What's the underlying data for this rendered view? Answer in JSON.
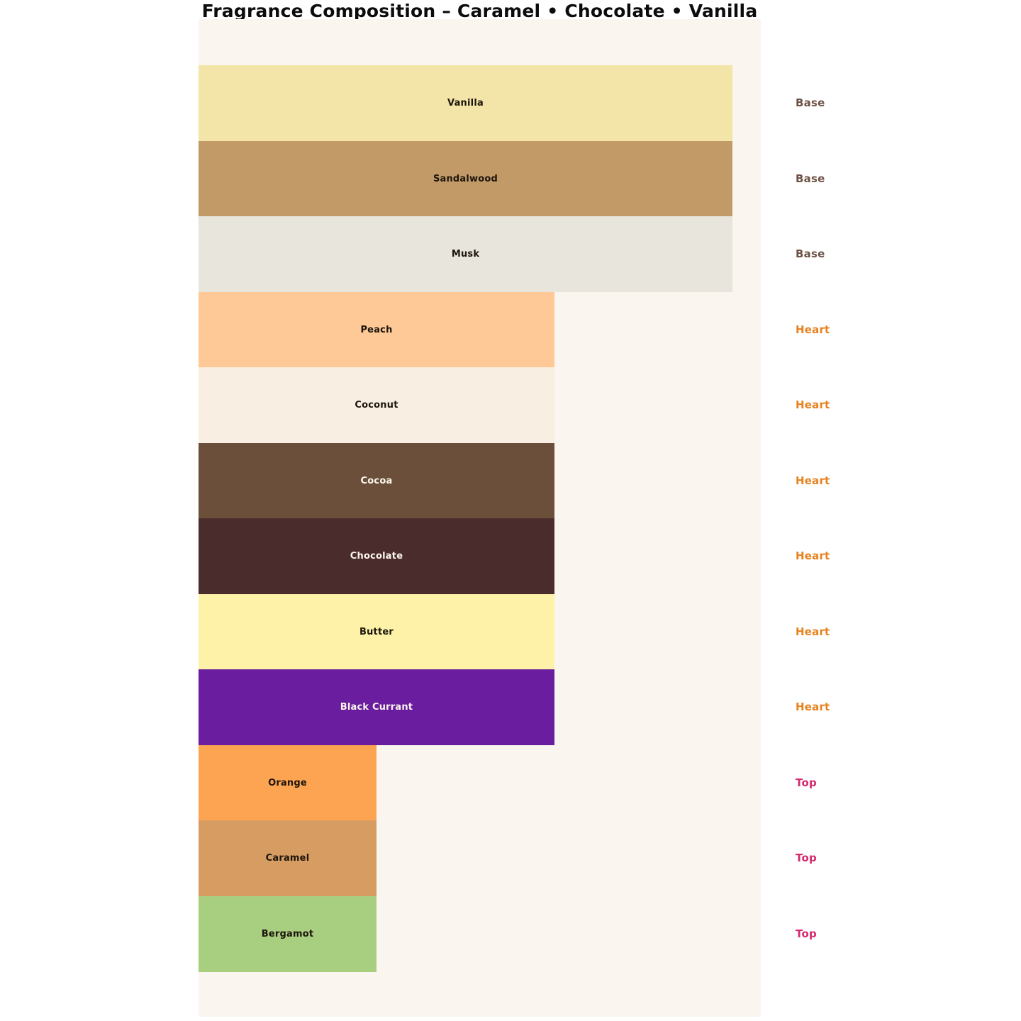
{
  "title": "Fragrance Composition – Caramel • Chocolate • Vanilla",
  "colors": {
    "page_bg": "#ffffff",
    "panel_bg": "#faf5ee",
    "dark_bar_text": "#1d150c",
    "light_bar_text": "#faf6ec"
  },
  "chart_data": {
    "type": "bar",
    "orientation": "horizontal",
    "title": "Fragrance Composition – Caramel • Chocolate • Vanilla",
    "xlabel": "",
    "ylabel": "",
    "grid": false,
    "axes_visible": false,
    "legend_position": "right-of-bars-per-row",
    "x_max": 3,
    "categories": [
      "Vanilla",
      "Sandalwood",
      "Musk",
      "Peach",
      "Coconut",
      "Cocoa",
      "Chocolate",
      "Butter",
      "Black Currant",
      "Orange",
      "Caramel",
      "Bergamot"
    ],
    "values": [
      3,
      3,
      3,
      2,
      2,
      2,
      2,
      2,
      2,
      1,
      1,
      1
    ],
    "notes": [
      {
        "label": "Vanilla",
        "category": "Base",
        "value": 3,
        "color": "#f2e5a7",
        "text": "dark"
      },
      {
        "label": "Sandalwood",
        "category": "Base",
        "value": 3,
        "color": "#c19a67",
        "text": "dark"
      },
      {
        "label": "Musk",
        "category": "Base",
        "value": 3,
        "color": "#e8e5dd",
        "text": "dark"
      },
      {
        "label": "Peach",
        "category": "Heart",
        "value": 2,
        "color": "#fec897",
        "text": "dark"
      },
      {
        "label": "Coconut",
        "category": "Heart",
        "value": 2,
        "color": "#f8efe2",
        "text": "dark"
      },
      {
        "label": "Cocoa",
        "category": "Heart",
        "value": 2,
        "color": "#6b4f3a",
        "text": "light"
      },
      {
        "label": "Chocolate",
        "category": "Heart",
        "value": 2,
        "color": "#4b2c2c",
        "text": "light"
      },
      {
        "label": "Butter",
        "category": "Heart",
        "value": 2,
        "color": "#fdf2a8",
        "text": "dark"
      },
      {
        "label": "Black Currant",
        "category": "Heart",
        "value": 2,
        "color": "#6a1d9e",
        "text": "light"
      },
      {
        "label": "Orange",
        "category": "Top",
        "value": 1,
        "color": "#fca452",
        "text": "dark"
      },
      {
        "label": "Caramel",
        "category": "Top",
        "value": 1,
        "color": "#d69c62",
        "text": "dark"
      },
      {
        "label": "Bergamot",
        "category": "Top",
        "value": 1,
        "color": "#a8cf80",
        "text": "dark"
      }
    ],
    "category_colors": {
      "Base": "#6e5246",
      "Heart": "#e8821e",
      "Top": "#d42a6e"
    }
  }
}
